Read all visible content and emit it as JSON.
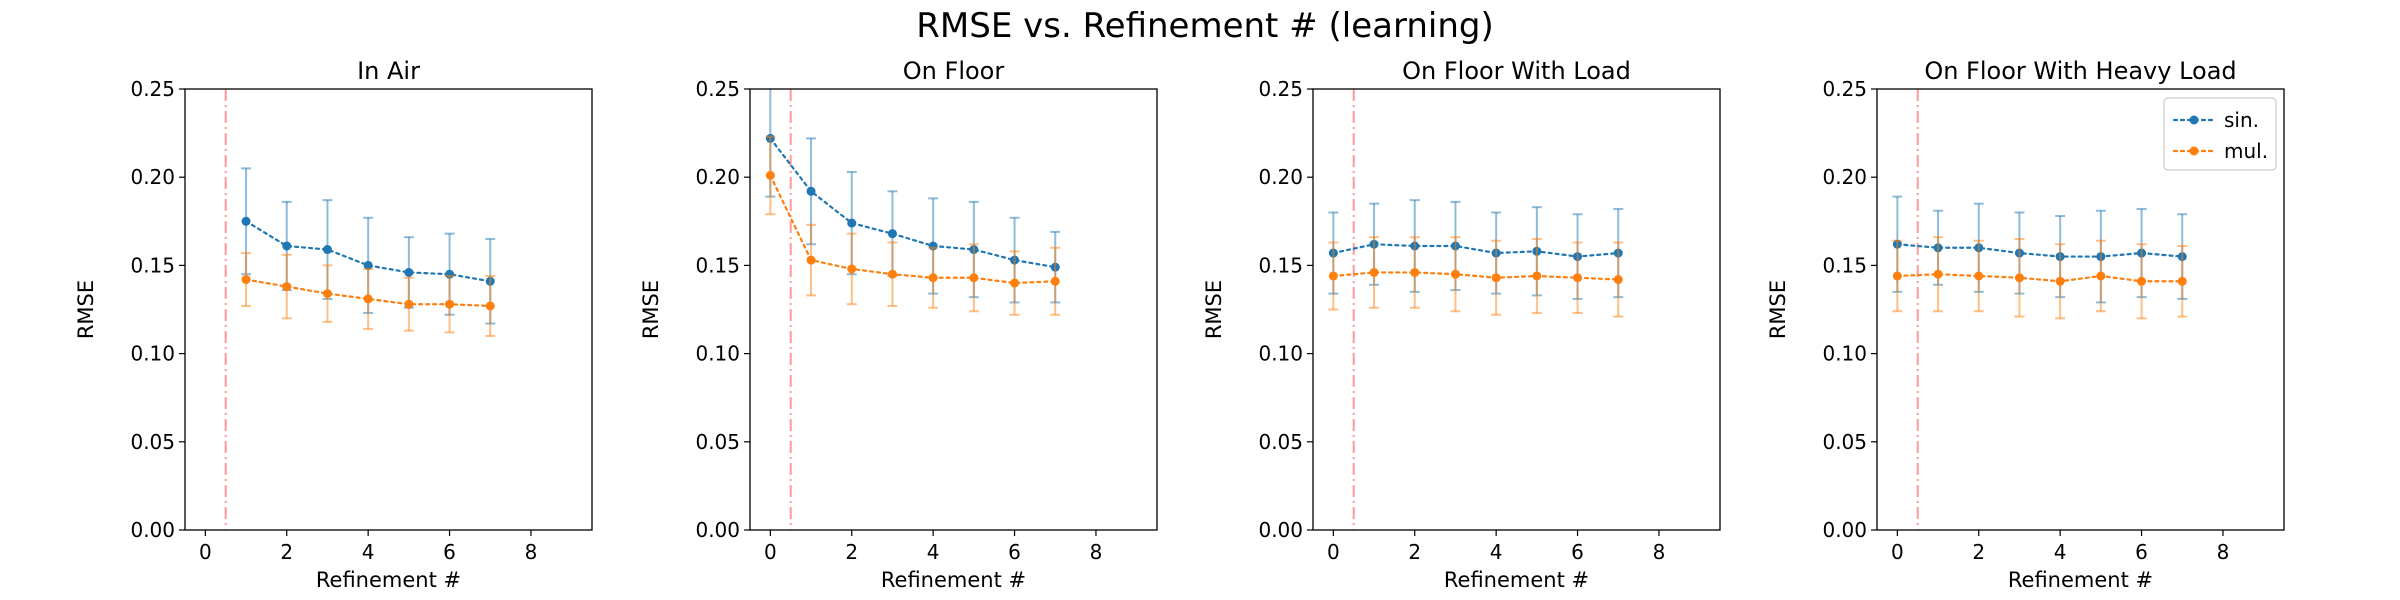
{
  "figure": {
    "title": "RMSE vs. Refinement # (learning)"
  },
  "legend": {
    "placement": "upper-right of last panel",
    "entries": [
      {
        "label": "sin.",
        "color": "#1f77b4"
      },
      {
        "label": "mul.",
        "color": "#ff7f0e"
      }
    ]
  },
  "chart_data": [
    {
      "type": "line",
      "title": "In Air",
      "xlabel": "Refinement #",
      "ylabel": "RMSE",
      "xlim": [
        -0.5,
        9.5
      ],
      "ylim": [
        0,
        0.25
      ],
      "xticks": [
        "0",
        "2",
        "4",
        "6",
        "8"
      ],
      "yticks": [
        "0.00",
        "0.05",
        "0.10",
        "0.15",
        "0.20",
        "0.25"
      ],
      "vline_x": 0.5,
      "vline_color": "#ff9999",
      "grid": false,
      "series": [
        {
          "name": "sin.",
          "color": "#1f77b4",
          "x": [
            1,
            2,
            3,
            4,
            5,
            6,
            7
          ],
          "values": [
            0.175,
            0.161,
            0.159,
            0.15,
            0.146,
            0.145,
            0.141
          ],
          "err": [
            0.03,
            0.025,
            0.028,
            0.027,
            0.02,
            0.023,
            0.024
          ]
        },
        {
          "name": "mul.",
          "color": "#ff7f0e",
          "x": [
            1,
            2,
            3,
            4,
            5,
            6,
            7
          ],
          "values": [
            0.142,
            0.138,
            0.134,
            0.131,
            0.128,
            0.128,
            0.127
          ],
          "err": [
            0.015,
            0.018,
            0.016,
            0.017,
            0.015,
            0.016,
            0.017
          ]
        }
      ]
    },
    {
      "type": "line",
      "title": "On Floor",
      "xlabel": "Refinement #",
      "ylabel": "RMSE",
      "xlim": [
        -0.5,
        9.5
      ],
      "ylim": [
        0,
        0.25
      ],
      "xticks": [
        "0",
        "2",
        "4",
        "6",
        "8"
      ],
      "yticks": [
        "0.00",
        "0.05",
        "0.10",
        "0.15",
        "0.20",
        "0.25"
      ],
      "vline_x": 0.5,
      "vline_color": "#ff9999",
      "grid": false,
      "series": [
        {
          "name": "sin.",
          "color": "#1f77b4",
          "x": [
            0,
            1,
            2,
            3,
            4,
            5,
            6,
            7
          ],
          "values": [
            0.222,
            0.192,
            0.174,
            0.168,
            0.161,
            0.159,
            0.153,
            0.149
          ],
          "err": [
            0.033,
            0.03,
            0.029,
            0.024,
            0.027,
            0.027,
            0.024,
            0.02
          ]
        },
        {
          "name": "mul.",
          "color": "#ff7f0e",
          "x": [
            0,
            1,
            2,
            3,
            4,
            5,
            6,
            7
          ],
          "values": [
            0.201,
            0.153,
            0.148,
            0.145,
            0.143,
            0.143,
            0.14,
            0.141
          ],
          "err": [
            0.022,
            0.02,
            0.02,
            0.018,
            0.017,
            0.019,
            0.018,
            0.019
          ]
        }
      ]
    },
    {
      "type": "line",
      "title": "On Floor With Load",
      "xlabel": "Refinement #",
      "ylabel": "RMSE",
      "xlim": [
        -0.5,
        9.5
      ],
      "ylim": [
        0,
        0.25
      ],
      "xticks": [
        "0",
        "2",
        "4",
        "6",
        "8"
      ],
      "yticks": [
        "0.00",
        "0.05",
        "0.10",
        "0.15",
        "0.20",
        "0.25"
      ],
      "vline_x": 0.5,
      "vline_color": "#ff9999",
      "grid": false,
      "series": [
        {
          "name": "sin.",
          "color": "#1f77b4",
          "x": [
            0,
            1,
            2,
            3,
            4,
            5,
            6,
            7
          ],
          "values": [
            0.157,
            0.162,
            0.161,
            0.161,
            0.157,
            0.158,
            0.155,
            0.157
          ],
          "err": [
            0.023,
            0.023,
            0.026,
            0.025,
            0.023,
            0.025,
            0.024,
            0.025
          ]
        },
        {
          "name": "mul.",
          "color": "#ff7f0e",
          "x": [
            0,
            1,
            2,
            3,
            4,
            5,
            6,
            7
          ],
          "values": [
            0.144,
            0.146,
            0.146,
            0.145,
            0.143,
            0.144,
            0.143,
            0.142
          ],
          "err": [
            0.019,
            0.02,
            0.02,
            0.021,
            0.021,
            0.021,
            0.02,
            0.021
          ]
        }
      ]
    },
    {
      "type": "line",
      "title": "On Floor With Heavy Load",
      "xlabel": "Refinement #",
      "ylabel": "RMSE",
      "xlim": [
        -0.5,
        9.5
      ],
      "ylim": [
        0,
        0.25
      ],
      "xticks": [
        "0",
        "2",
        "4",
        "6",
        "8"
      ],
      "yticks": [
        "0.00",
        "0.05",
        "0.10",
        "0.15",
        "0.20",
        "0.25"
      ],
      "vline_x": 0.5,
      "vline_color": "#ff9999",
      "grid": false,
      "series": [
        {
          "name": "sin.",
          "color": "#1f77b4",
          "x": [
            0,
            1,
            2,
            3,
            4,
            5,
            6,
            7
          ],
          "values": [
            0.162,
            0.16,
            0.16,
            0.157,
            0.155,
            0.155,
            0.157,
            0.155
          ],
          "err": [
            0.027,
            0.021,
            0.025,
            0.023,
            0.023,
            0.026,
            0.025,
            0.024
          ]
        },
        {
          "name": "mul.",
          "color": "#ff7f0e",
          "x": [
            0,
            1,
            2,
            3,
            4,
            5,
            6,
            7
          ],
          "values": [
            0.144,
            0.145,
            0.144,
            0.143,
            0.141,
            0.144,
            0.141,
            0.141
          ],
          "err": [
            0.02,
            0.021,
            0.02,
            0.022,
            0.021,
            0.02,
            0.021,
            0.02
          ]
        }
      ]
    }
  ]
}
